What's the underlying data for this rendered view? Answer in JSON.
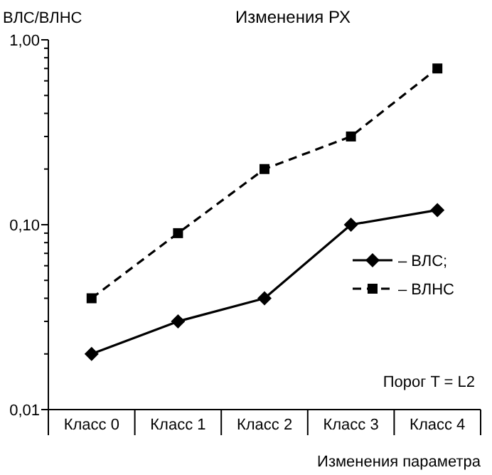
{
  "chart_data": {
    "type": "line",
    "title": "Изменения РХ",
    "ylabel": "ВЛС/ВЛНС",
    "xlabel": "Изменения параметра",
    "categories": [
      "Класс 0",
      "Класс 1",
      "Класс 2",
      "Класс 3",
      "Класс 4"
    ],
    "series": [
      {
        "name": "– ВЛС;",
        "color": "#000000",
        "marker": "diamond",
        "line_style": "solid",
        "values": [
          0.02,
          0.03,
          0.04,
          0.1,
          0.12
        ]
      },
      {
        "name": "– ВЛНС",
        "color": "#000000",
        "marker": "square",
        "line_style": "dashed",
        "values": [
          0.04,
          0.09,
          0.2,
          0.3,
          0.7
        ]
      }
    ],
    "log": true,
    "ylim": [
      0.01,
      1
    ],
    "yticks": [
      {
        "value": 0.01,
        "label": "0,01"
      },
      {
        "value": 0.1,
        "label": "0,10"
      },
      {
        "value": 1,
        "label": "1,00"
      }
    ],
    "legend": "right",
    "grid": false,
    "annotations": [
      "Порог T = L2"
    ]
  }
}
